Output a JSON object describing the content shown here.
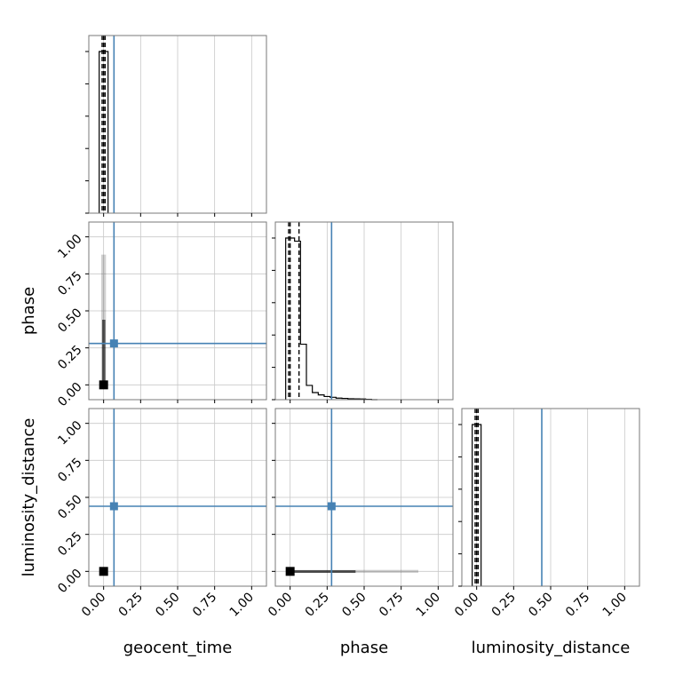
{
  "chart_data": {
    "type": "corner",
    "parameters": [
      "geocent_time",
      "phase",
      "luminosity_distance"
    ],
    "axis_range": [
      -0.1,
      1.1
    ],
    "tick_values": [
      0.0,
      0.25,
      0.5,
      0.75,
      1.0
    ],
    "tick_labels": [
      "0.00",
      "0.25",
      "0.50",
      "0.75",
      "1.00"
    ],
    "truths": [
      0.07,
      0.28,
      0.44
    ],
    "truth_color": "#4682b4",
    "hist_color": "#000000",
    "grid": true,
    "histograms": [
      {
        "parameter": "geocent_time",
        "bin_edges": [
          -0.03,
          0.03
        ],
        "density": [
          1.0
        ],
        "quantiles": [
          -0.01,
          0.0,
          0.01
        ]
      },
      {
        "parameter": "phase",
        "bin_edges": [
          -0.03,
          0.03,
          0.07,
          0.11,
          0.15,
          0.19,
          0.23,
          0.27,
          0.31,
          0.35,
          0.39,
          0.43,
          0.47,
          0.51,
          0.55,
          0.59
        ],
        "density": [
          1.02,
          1.0,
          0.35,
          0.09,
          0.045,
          0.03,
          0.02,
          0.015,
          0.01,
          0.008,
          0.006,
          0.005,
          0.004,
          0.002,
          0.0
        ],
        "quantiles": [
          -0.01,
          0.0,
          0.06
        ]
      },
      {
        "parameter": "luminosity_distance",
        "bin_edges": [
          -0.03,
          0.03
        ],
        "density": [
          1.0
        ],
        "quantiles": [
          -0.01,
          0.0,
          0.01
        ]
      }
    ],
    "scatter_panels": [
      {
        "x_param": "geocent_time",
        "y_param": "phase",
        "x_range": [
          -0.01,
          0.01
        ],
        "y_range": [
          0.0,
          0.88
        ]
      },
      {
        "x_param": "geocent_time",
        "y_param": "luminosity_distance",
        "x_range": [
          -0.01,
          0.01
        ],
        "y_range": [
          -0.01,
          0.01
        ]
      },
      {
        "x_param": "phase",
        "y_param": "luminosity_distance",
        "x_range": [
          0.0,
          0.86
        ],
        "y_range": [
          -0.01,
          0.01
        ]
      }
    ]
  }
}
